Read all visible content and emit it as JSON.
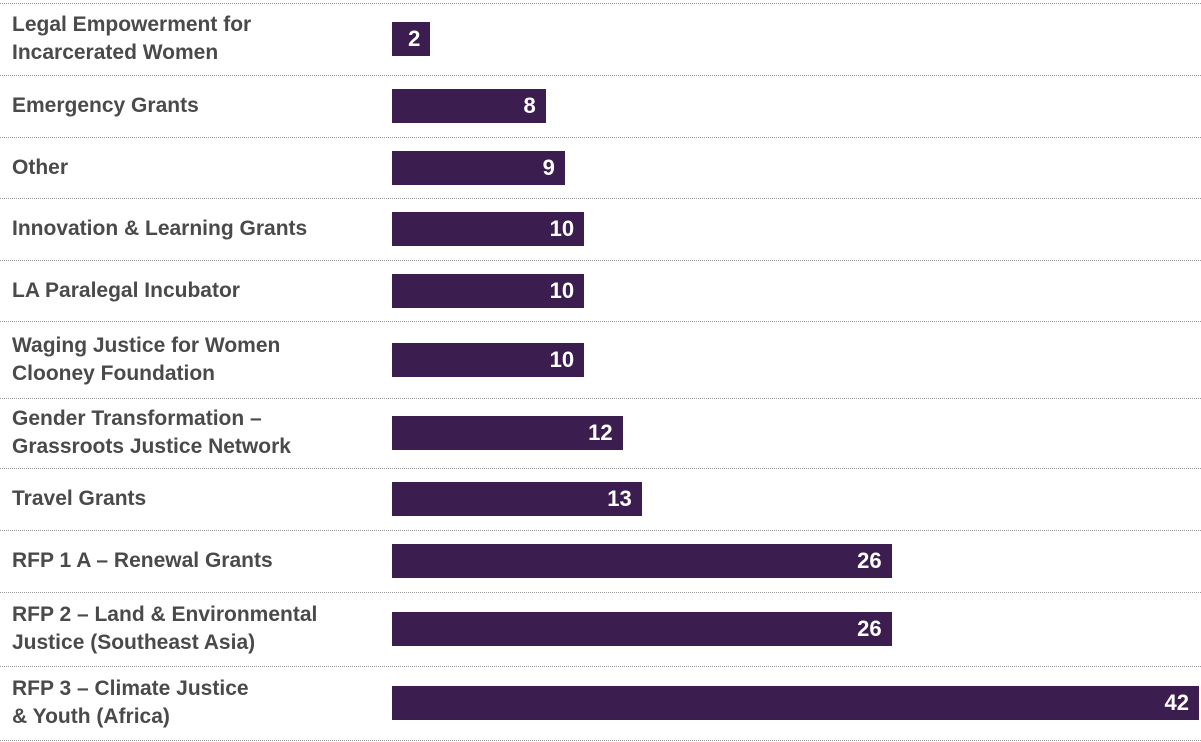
{
  "colors": {
    "bar": "#3b1e4f",
    "label": "#4a4a4a",
    "divider": "#9a9a9a",
    "value_text": "#ffffff"
  },
  "chart_data": {
    "type": "bar",
    "orientation": "horizontal",
    "categories": [
      "Legal Empowerment for\nIncarcerated Women",
      "Emergency Grants",
      "Other",
      "Innovation & Learning Grants",
      "LA Paralegal Incubator",
      "Waging Justice for Women\nClooney Foundation",
      "Gender Transformation –\nGrassroots Justice Network",
      "Travel Grants",
      "RFP 1 A – Renewal Grants",
      "RFP 2 – Land & Environmental\nJustice (Southeast Asia)",
      "RFP 3 – Climate Justice\n& Youth (Africa)"
    ],
    "values": [
      2,
      8,
      9,
      10,
      10,
      10,
      12,
      13,
      26,
      26,
      42
    ],
    "xlim": [
      0,
      42
    ],
    "title": "",
    "xlabel": "",
    "ylabel": "",
    "grid": false,
    "data_labels": true
  }
}
